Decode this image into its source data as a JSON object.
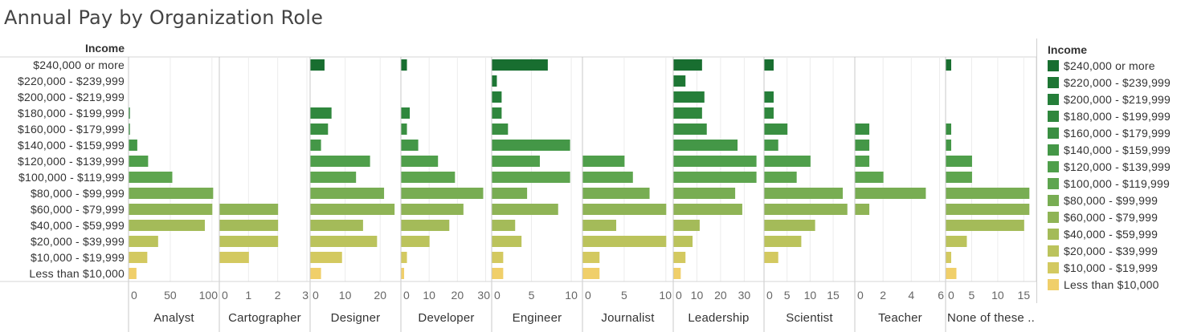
{
  "title": "Annual Pay by Organization Role",
  "legend": {
    "title": "Income",
    "items": [
      {
        "label": "$240,000 or more",
        "color": "#186e30"
      },
      {
        "label": "$220,000 - $239,999",
        "color": "#1e7634"
      },
      {
        "label": "$200,000 - $219,999",
        "color": "#257e39"
      },
      {
        "label": "$180,000 - $199,999",
        "color": "#2f873d"
      },
      {
        "label": "$160,000 - $179,999",
        "color": "#3a8f42"
      },
      {
        "label": "$140,000 - $159,999",
        "color": "#449747"
      },
      {
        "label": "$120,000 - $139,999",
        "color": "#4f9f4b"
      },
      {
        "label": "$100,000 - $119,999",
        "color": "#5ea54f"
      },
      {
        "label": "$80,000 - $99,999",
        "color": "#78ad53"
      },
      {
        "label": "$60,000 - $79,999",
        "color": "#8fb456"
      },
      {
        "label": "$40,000 - $59,999",
        "color": "#a4bb59"
      },
      {
        "label": "$20,000 - $39,999",
        "color": "#bbc35c"
      },
      {
        "label": "$10,000 - $19,999",
        "color": "#d3c960"
      },
      {
        "label": "Less than $10,000",
        "color": "#f0cf6a"
      }
    ]
  },
  "chart_data": {
    "type": "bar",
    "orientation": "horizontal",
    "title": "Annual Pay by Organization Role",
    "row_header": "Income",
    "categories": [
      "$240,000 or more",
      "$220,000 - $239,999",
      "$200,000 - $219,999",
      "$180,000 - $199,999",
      "$160,000 - $179,999",
      "$140,000 - $159,999",
      "$120,000 - $139,999",
      "$100,000 - $119,999",
      "$80,000 - $99,999",
      "$60,000 - $79,999",
      "$40,000 - $59,999",
      "$20,000 - $39,999",
      "$10,000 - $19,999",
      "Less than $10,000"
    ],
    "panels": [
      {
        "name": "Analyst",
        "xlim": [
          0,
          105
        ],
        "ticks": [
          "0",
          "50",
          "100"
        ],
        "tick_values": [
          0,
          50,
          100
        ],
        "values": [
          0,
          0,
          0,
          1,
          1,
          10,
          23,
          52,
          101,
          100,
          91,
          35,
          22,
          9
        ]
      },
      {
        "name": "Cartographer",
        "xlim": [
          0,
          3
        ],
        "ticks": [
          "0",
          "1",
          "2",
          "3"
        ],
        "tick_values": [
          0,
          1,
          2,
          3
        ],
        "values": [
          0,
          0,
          0,
          0,
          0,
          0,
          0,
          0,
          0,
          2,
          2,
          2,
          1,
          0
        ]
      },
      {
        "name": "Designer",
        "xlim": [
          0,
          25
        ],
        "ticks": [
          "0",
          "10",
          "20"
        ],
        "tick_values": [
          0,
          10,
          20
        ],
        "values": [
          4,
          0,
          0,
          6,
          5,
          3,
          17,
          13,
          21,
          24,
          15,
          19,
          9,
          3
        ]
      },
      {
        "name": "Developer",
        "xlim": [
          0,
          31
        ],
        "ticks": [
          "0",
          "10",
          "20",
          "30"
        ],
        "tick_values": [
          0,
          10,
          20,
          30
        ],
        "values": [
          2,
          0,
          0,
          3,
          2,
          6,
          13,
          19,
          29,
          22,
          17,
          10,
          2,
          1
        ]
      },
      {
        "name": "Engineer",
        "xlim": [
          0,
          11
        ],
        "ticks": [
          "0",
          "5",
          "10"
        ],
        "tick_values": [
          0,
          5,
          10
        ],
        "values": [
          7,
          0.6,
          1.2,
          1.2,
          2,
          9.8,
          6,
          9.8,
          4.4,
          8.3,
          2.9,
          3.7,
          1.4,
          1.4
        ]
      },
      {
        "name": "Journalist",
        "xlim": [
          0,
          10.5
        ],
        "ticks": [
          "0",
          "5",
          "10"
        ],
        "tick_values": [
          0,
          5,
          10
        ],
        "values": [
          0,
          0,
          0,
          0,
          0,
          0,
          5,
          6,
          8,
          10,
          4,
          10,
          2,
          2
        ]
      },
      {
        "name": "Leadership",
        "xlim": [
          0,
          37
        ],
        "ticks": [
          "0",
          "10",
          "20",
          "30"
        ],
        "tick_values": [
          0,
          10,
          20,
          30
        ],
        "values": [
          12,
          5,
          13,
          12,
          14,
          27,
          35,
          35,
          26,
          29,
          11,
          8,
          5,
          3
        ]
      },
      {
        "name": "Scientist",
        "xlim": [
          0,
          19
        ],
        "ticks": [
          "0",
          "5",
          "10",
          "15"
        ],
        "tick_values": [
          0,
          5,
          10,
          15
        ],
        "values": [
          2,
          0,
          2,
          2,
          5,
          3,
          10,
          7,
          17,
          18,
          11,
          8,
          3,
          0
        ]
      },
      {
        "name": "Teacher",
        "xlim": [
          0,
          6.2
        ],
        "ticks": [
          "0",
          "2",
          "4",
          "6"
        ],
        "tick_values": [
          0,
          2,
          4,
          6
        ],
        "values": [
          0,
          0,
          0,
          0,
          1,
          1,
          1,
          2,
          5,
          1,
          0,
          0,
          0,
          0
        ]
      },
      {
        "name": "None of these ..",
        "xlim": [
          0,
          16.8
        ],
        "ticks": [
          "0",
          "5",
          "10",
          "15"
        ],
        "tick_values": [
          0,
          5,
          10,
          15
        ],
        "values": [
          1,
          0,
          0,
          0,
          1,
          1,
          5,
          5,
          16,
          16,
          15,
          4,
          1,
          2
        ]
      }
    ]
  }
}
